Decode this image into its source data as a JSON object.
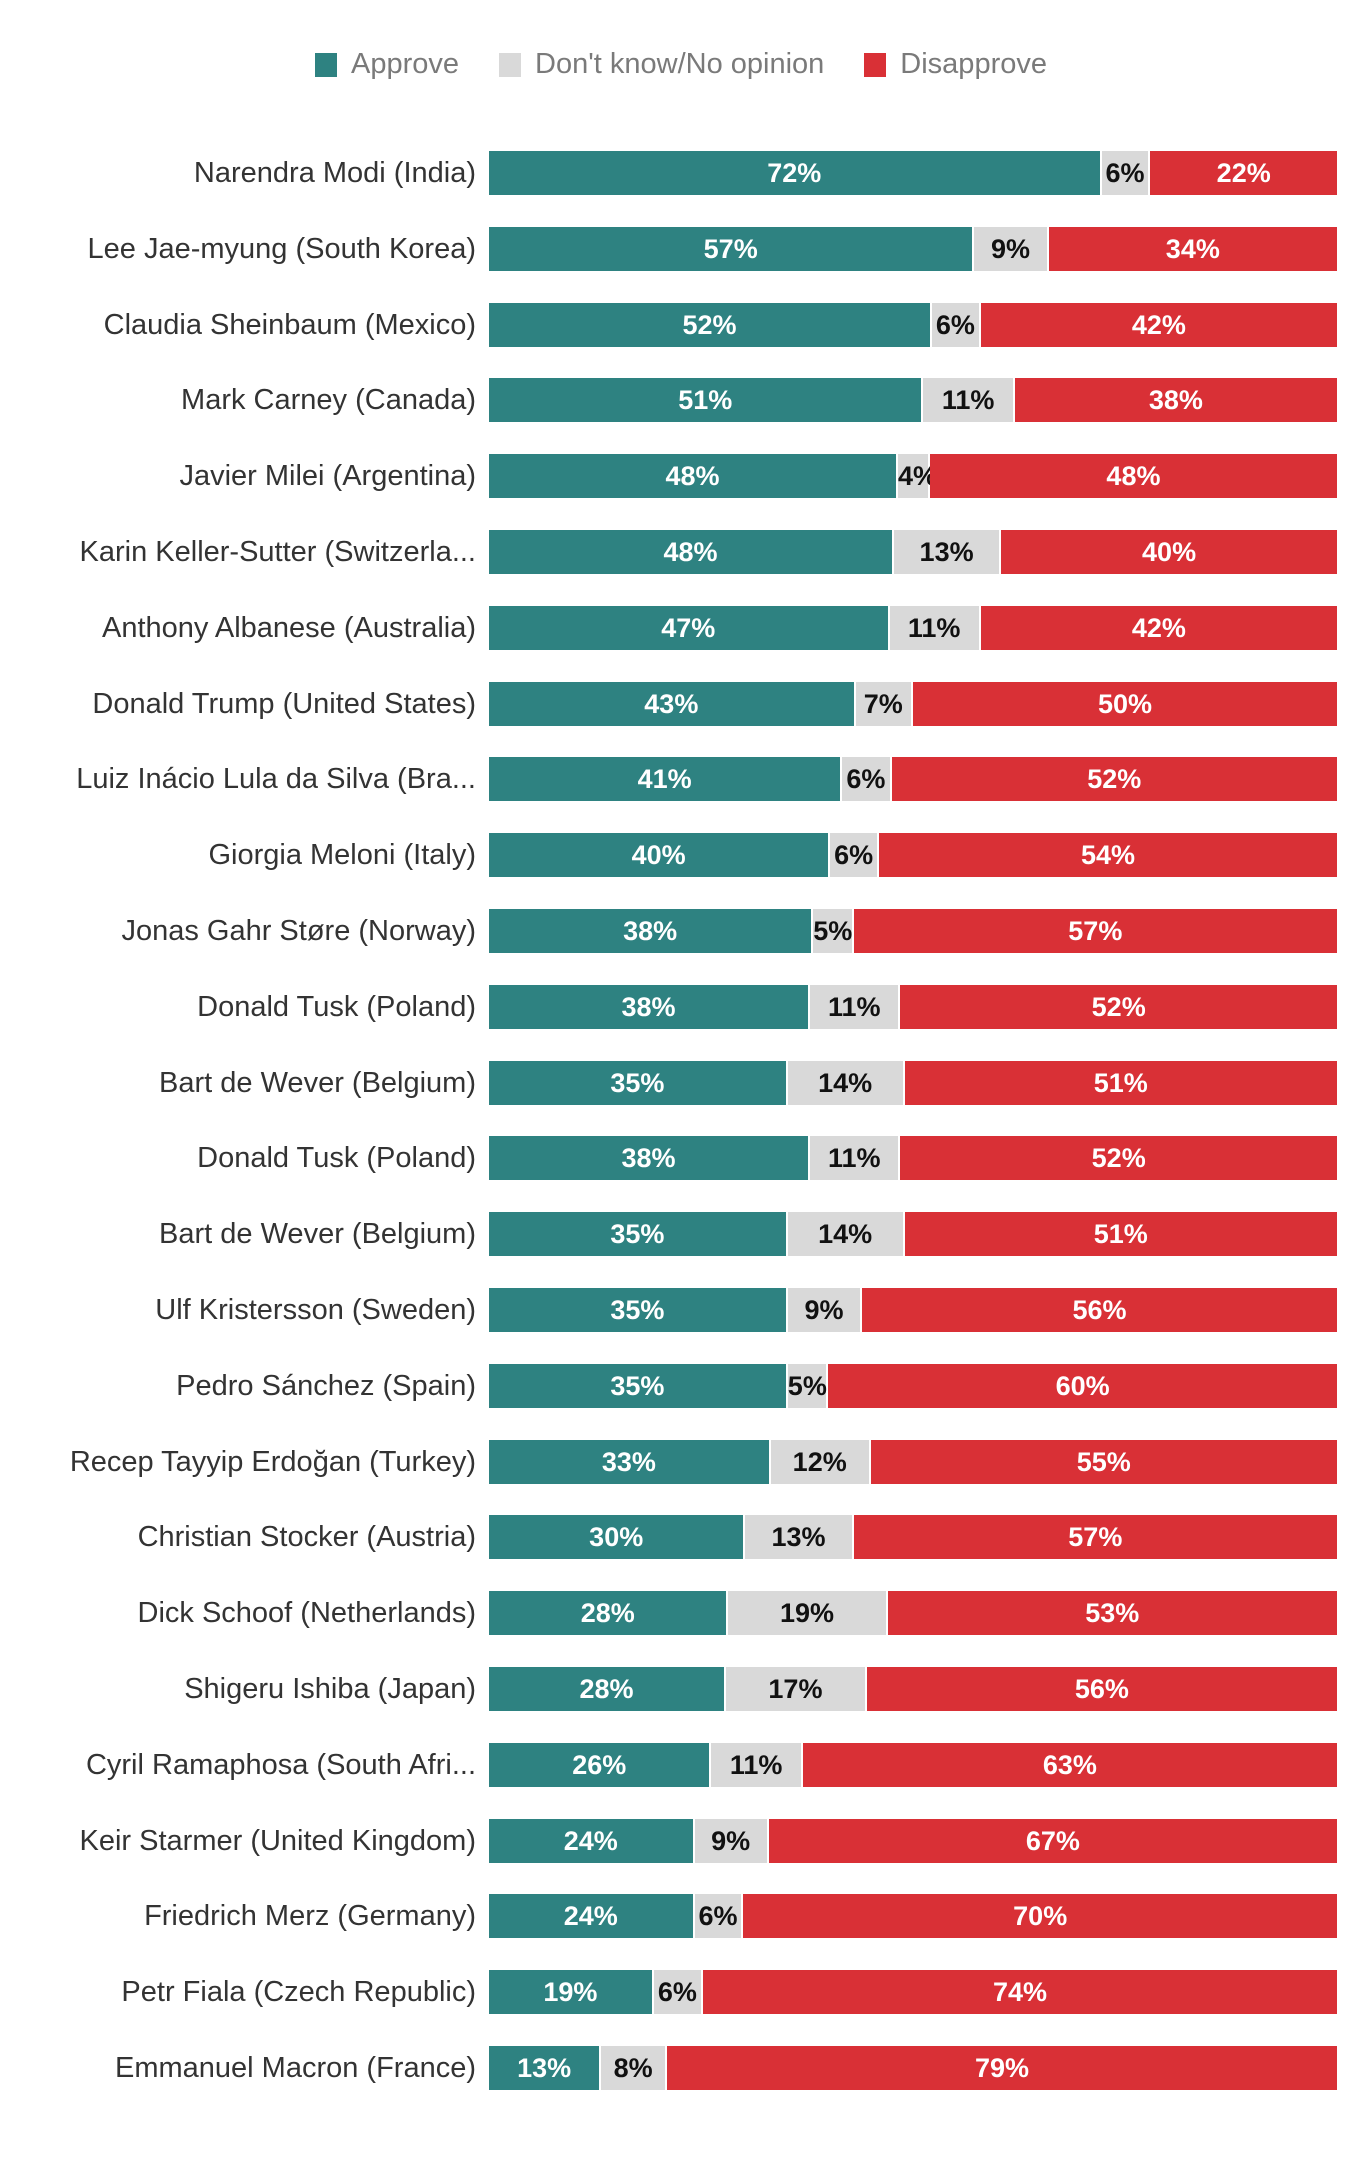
{
  "chart_data": {
    "type": "bar",
    "orientation": "horizontal",
    "stacked": true,
    "legend_position": "top",
    "colors": {
      "approve": "#2e8281",
      "neutral": "#d9d9d9",
      "disapprove": "#d93036"
    },
    "legend": [
      "Approve",
      "Don't know/No opinion",
      "Disapprove"
    ],
    "categories": [
      "Narendra Modi (India)",
      "Lee Jae-myung (South Korea)",
      "Claudia Sheinbaum (Mexico)",
      "Mark Carney (Canada)",
      "Javier Milei (Argentina)",
      "Karin Keller-Sutter (Switzerla...",
      "Anthony Albanese (Australia)",
      "Donald Trump (United States)",
      "Luiz Inácio Lula da Silva (Bra...",
      "Giorgia Meloni (Italy)",
      "Jonas Gahr Støre (Norway)",
      "Donald Tusk (Poland)",
      "Bart de Wever (Belgium)",
      "Donald Tusk (Poland)",
      "Bart de Wever (Belgium)",
      "Ulf Kristersson (Sweden)",
      "Pedro Sánchez (Spain)",
      "Recep Tayyip Erdoğan (Turkey)",
      "Christian Stocker (Austria)",
      "Dick Schoof (Netherlands)",
      "Shigeru Ishiba (Japan)",
      "Cyril Ramaphosa (South Afri...",
      "Keir Starmer (United Kingdom)",
      "Friedrich Merz (Germany)",
      "Petr Fiala (Czech Republic)",
      "Emmanuel Macron (France)"
    ],
    "series": [
      {
        "name": "Approve",
        "values": [
          72,
          57,
          52,
          51,
          48,
          48,
          47,
          43,
          41,
          40,
          38,
          38,
          35,
          38,
          35,
          35,
          35,
          33,
          30,
          28,
          28,
          26,
          24,
          24,
          19,
          13
        ]
      },
      {
        "name": "Don't know/No opinion",
        "values": [
          6,
          9,
          6,
          11,
          4,
          13,
          11,
          7,
          6,
          6,
          5,
          11,
          14,
          11,
          14,
          9,
          5,
          12,
          13,
          19,
          17,
          11,
          9,
          6,
          6,
          8
        ]
      },
      {
        "name": "Disapprove",
        "values": [
          22,
          34,
          42,
          38,
          48,
          40,
          42,
          50,
          52,
          54,
          57,
          52,
          51,
          52,
          51,
          56,
          60,
          55,
          57,
          53,
          56,
          63,
          67,
          70,
          74,
          79
        ]
      }
    ],
    "value_suffix": "%"
  }
}
